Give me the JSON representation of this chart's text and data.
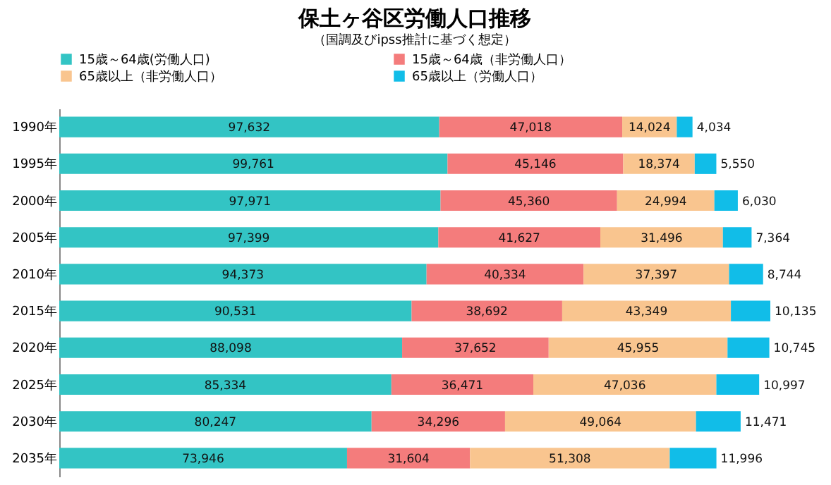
{
  "chart_data": {
    "type": "bar",
    "orientation": "horizontal",
    "stacked": true,
    "title": "保土ヶ谷区労働人口推移",
    "subtitle": "（国調及びipss推計に基づく想定）",
    "categories": [
      "1990年",
      "1995年",
      "2000年",
      "2005年",
      "2010年",
      "2015年",
      "2020年",
      "2025年",
      "2030年",
      "2035年"
    ],
    "series": [
      {
        "name": "15歳～64歳(労働人口)",
        "color": "#33c4c4",
        "values": [
          97632,
          99761,
          97971,
          97399,
          94373,
          90531,
          88098,
          85334,
          80247,
          73946
        ],
        "value_labels": [
          "97,632",
          "99,761",
          "97,971",
          "97,399",
          "94,373",
          "90,531",
          "88,098",
          "85,334",
          "80,247",
          "73,946"
        ]
      },
      {
        "name": "15歳～64歳（非労働人口）",
        "color": "#f47c7c",
        "values": [
          47018,
          45146,
          45360,
          41627,
          40334,
          38692,
          37652,
          36471,
          34296,
          31604
        ],
        "value_labels": [
          "47,018",
          "45,146",
          "45,360",
          "41,627",
          "40,334",
          "38,692",
          "37,652",
          "36,471",
          "34,296",
          "31,604"
        ]
      },
      {
        "name": "65歳以上（非労働人口）",
        "color": "#f9c58f",
        "values": [
          14024,
          18374,
          24994,
          31496,
          37397,
          43349,
          45955,
          47036,
          49064,
          51308
        ],
        "value_labels": [
          "14,024",
          "18,374",
          "24,994",
          "31,496",
          "37,397",
          "43,349",
          "45,955",
          "47,036",
          "49,064",
          "51,308"
        ]
      },
      {
        "name": "65歳以上（労働人口）",
        "color": "#11bde8",
        "values": [
          4034,
          5550,
          6030,
          7364,
          8744,
          10135,
          10745,
          10997,
          11471,
          11996
        ],
        "value_labels": [
          "4,034",
          "5,550",
          "6,030",
          "7,364",
          "8,744",
          "10,135",
          "10,745",
          "10,997",
          "11,471",
          "11,996"
        ]
      }
    ],
    "legend": "top",
    "tick_labels": "y",
    "grid": false
  }
}
